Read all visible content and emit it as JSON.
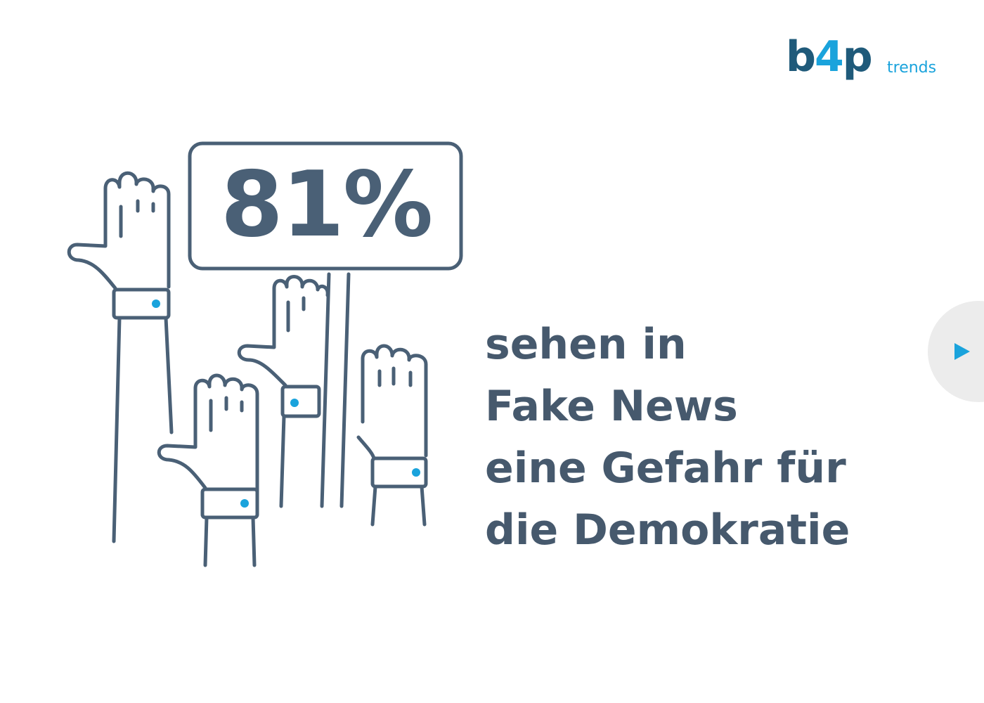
{
  "brand": {
    "logo_main_prefix": "b",
    "logo_main_plus": "4",
    "logo_main_suffix": "p",
    "logo_sub": "trends"
  },
  "stat": {
    "value": "81%"
  },
  "statement": {
    "lines": [
      "sehen in",
      "Fake News",
      "eine Gefahr für",
      "die Demokratie"
    ]
  },
  "navigation": {
    "next_icon": "play-arrow-icon"
  },
  "colors": {
    "primary_text": "#46596d",
    "accent": "#1aa3dc",
    "brand_dark": "#1f5a7a",
    "button_bg": "#ececec"
  }
}
